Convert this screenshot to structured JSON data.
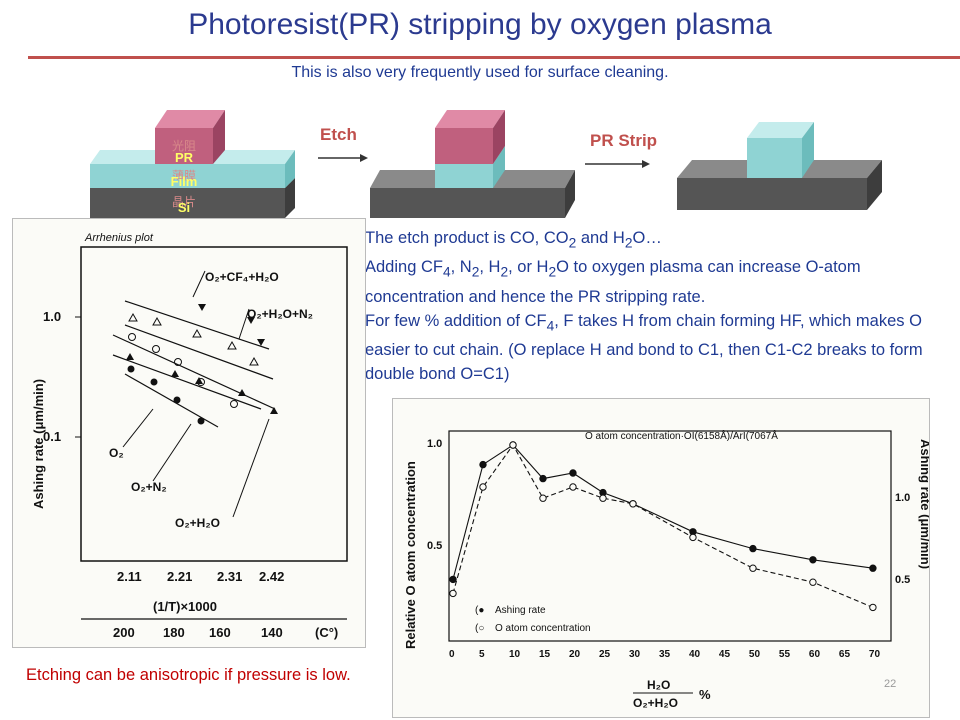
{
  "slide": {
    "title": "Photoresist(PR) stripping by oxygen plasma",
    "subtitle": "This is also very frequently used for surface cleaning.",
    "page_number": "22",
    "footer_note": "Etching can be anisotropic if pressure is low."
  },
  "process_diagram": {
    "layer_labels": {
      "pr": "PR",
      "film": "Film",
      "si": "Si"
    },
    "chinese_labels": {
      "pr": "光阻",
      "film": "薄膜",
      "si": "晶片"
    },
    "step1_label": "Etch",
    "step2_label": "PR Strip",
    "colors": {
      "pr": "#c0607e",
      "film": "#8fd3d3",
      "si": "#555555",
      "arrow_label": "#c0504d"
    }
  },
  "body": {
    "line1": {
      "a": "The etch product is CO, CO",
      "sub1": "2",
      "b": " and H",
      "sub2": "2",
      "c": "O…"
    },
    "line2": {
      "a": "Adding CF",
      "sub1": "4",
      "b": ", N",
      "sub2": "2",
      "c": ", H",
      "sub3": "2",
      "d": ", or H",
      "sub4": "2",
      "e": "O to oxygen plasma can increase O-atom concentration and hence the PR stripping rate."
    },
    "line3": {
      "a": "For few % addition of CF",
      "sub1": "4",
      "b": ", F takes H from chain forming HF, which makes O easier to cut chain. (O replace H and bond to C1, then C1-C2 breaks to form double bond O=C1)"
    }
  },
  "arrhenius_plot": {
    "title": "Arrhenius plot",
    "ylabel": "Ashing rate  (μm/min)",
    "y_ticks": [
      "1.0",
      "0.1"
    ],
    "x_ticks_top": [
      "2.11",
      "2.21",
      "2.31",
      "2.42"
    ],
    "xlabel_top": "(1/T)×1000",
    "x_ticks_bottom": [
      "200",
      "180",
      "160",
      "140"
    ],
    "xlabel_bottom": "(C°)",
    "curve_labels": {
      "cf4": "O₂+CF₄+H₂O",
      "h2o_n2": "O₂+H₂O+N₂",
      "o2": "O₂",
      "o2_n2": "O₂+N₂",
      "o2_h2o": "O₂+H₂O"
    }
  },
  "chart_data": {
    "type": "line",
    "title": "",
    "legend_top": "O atom concentration·OI(6158Å)/ArI(7067Å",
    "legend_entries": [
      "Ashing rate",
      "O  atom  concentration"
    ],
    "xlabel_num": "H₂O",
    "xlabel_den": "O₂+H₂O",
    "xlabel_unit": "%",
    "ylabel": "Relative O  atom concentration",
    "y2label": "Ashing rate  (μm/min)",
    "x_ticks": [
      "0",
      "5",
      "10",
      "15",
      "20",
      "25",
      "30",
      "35",
      "40",
      "45",
      "50",
      "55",
      "60",
      "65",
      "70"
    ],
    "y_ticks": [
      "0.5",
      "1.0"
    ],
    "y2_ticks": [
      "0.5",
      "1.0"
    ],
    "xlim": [
      0,
      70
    ],
    "ylim": [
      0.3,
      1.05
    ],
    "series": [
      {
        "name": "Ashing rate",
        "marker": "filled",
        "x": [
          0,
          5,
          10,
          15,
          20,
          25,
          30,
          40,
          50,
          60,
          70
        ],
        "y": [
          0.52,
          0.93,
          1.0,
          0.88,
          0.9,
          0.83,
          0.79,
          0.69,
          0.63,
          0.59,
          0.56
        ]
      },
      {
        "name": "O  atom  concentration",
        "marker": "open",
        "x": [
          0,
          5,
          10,
          15,
          20,
          25,
          30,
          40,
          50,
          60,
          70
        ],
        "y": [
          0.47,
          0.85,
          1.0,
          0.81,
          0.85,
          0.81,
          0.79,
          0.67,
          0.56,
          0.51,
          0.42
        ]
      }
    ]
  }
}
